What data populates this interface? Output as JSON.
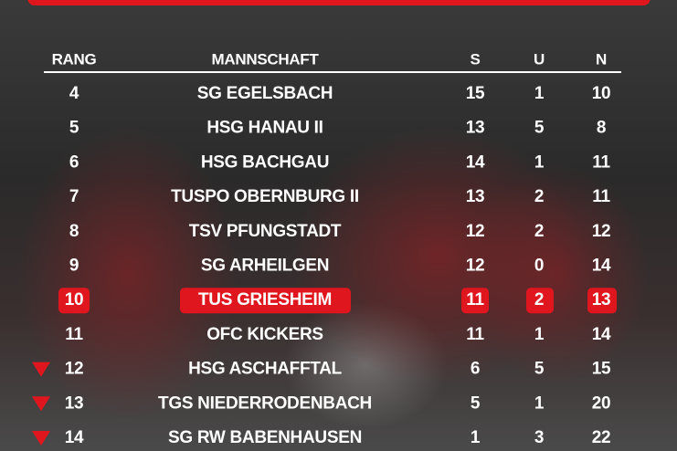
{
  "table": {
    "header": [
      "RANG",
      "MANNSCHAFT",
      "S",
      "U",
      "N"
    ],
    "rows": [
      [
        "4",
        "SG EGELSBACH",
        "15",
        "1",
        "10"
      ],
      [
        "5",
        "HSG HANAU II",
        "13",
        "5",
        "8"
      ],
      [
        "6",
        "HSG BACHGAU",
        "14",
        "1",
        "11"
      ],
      [
        "7",
        "TUSPO OBERNBURG II",
        "13",
        "2",
        "11"
      ],
      [
        "8",
        "TSV PFUNGSTADT",
        "12",
        "2",
        "12"
      ],
      [
        "9",
        "SG ARHEILGEN",
        "12",
        "0",
        "14"
      ],
      [
        "10",
        "TUS GRIESHEIM",
        "11",
        "2",
        "13"
      ],
      [
        "11",
        "OFC KICKERS",
        "11",
        "1",
        "14"
      ],
      [
        "12",
        "HSG ASCHAFFTAL",
        "6",
        "5",
        "15"
      ],
      [
        "13",
        "TGS NIEDERRODENBACH",
        "5",
        "1",
        "20"
      ],
      [
        "14",
        "SG RW BABENHAUSEN",
        "1",
        "3",
        "22"
      ]
    ]
  }
}
